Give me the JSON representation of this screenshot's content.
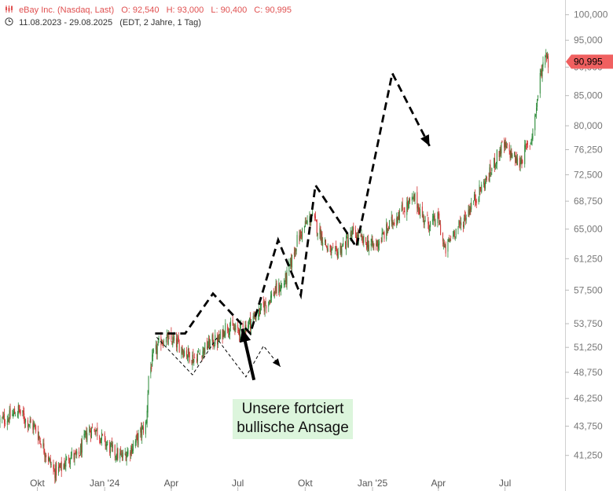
{
  "header": {
    "instrument": "eBay Inc. (Nasdaq, Last)",
    "open": "O: 92,540",
    "high": "H: 93,000",
    "low": "L: 90,400",
    "close": "C: 90,995",
    "date_range": "11.08.2023 - 29.08.2025",
    "interval": "(EDT, 2 Jahre, 1 Tag)"
  },
  "annotation": {
    "line1": "Unsere fortciert",
    "line2": "bullische Ansage"
  },
  "colors": {
    "up": "#2e8b3a",
    "down": "#d03030",
    "header_text": "#e05050",
    "last_price_tag": "#f06060",
    "annotation_bg": "#dcf5dc",
    "axis_text": "#777777",
    "path": "#000000"
  },
  "chart_data": {
    "type": "candlestick",
    "y_axis": {
      "scale": "log",
      "ticks": [
        "100,000",
        "95,000",
        "90,000",
        "85,000",
        "80,000",
        "76,250",
        "72,500",
        "68,750",
        "65,000",
        "61,250",
        "57,500",
        "53,750",
        "51,250",
        "48,750",
        "46,250",
        "43,750",
        "41,250"
      ],
      "tick_values": [
        100,
        95,
        90,
        85,
        80,
        76.25,
        72.5,
        68.75,
        65,
        61.25,
        57.5,
        53.75,
        51.25,
        48.75,
        46.25,
        43.75,
        41.25
      ],
      "range": [
        39.2,
        103
      ]
    },
    "x_axis": {
      "ticks": [
        "Okt",
        "Jan '24",
        "Apr",
        "Jul",
        "Okt",
        "Jan '25",
        "Apr",
        "Jul"
      ],
      "tick_dates": [
        "2023-10-01",
        "2024-01-01",
        "2024-04-01",
        "2024-07-01",
        "2024-10-01",
        "2025-01-01",
        "2025-04-01",
        "2025-07-01"
      ],
      "range": [
        "2023-08-11",
        "2025-09-20"
      ]
    },
    "last_price": {
      "label": "90,995",
      "value": 90.995
    },
    "price_path": [
      [
        "2023-08-11",
        44.2
      ],
      [
        "2023-08-25",
        44.6
      ],
      [
        "2023-09-05",
        45.2
      ],
      [
        "2023-09-15",
        44.3
      ],
      [
        "2023-09-28",
        43.6
      ],
      [
        "2023-10-10",
        41.8
      ],
      [
        "2023-10-24",
        39.9
      ],
      [
        "2023-11-03",
        40.2
      ],
      [
        "2023-11-15",
        41.3
      ],
      [
        "2023-11-25",
        41.0
      ],
      [
        "2023-12-08",
        43.2
      ],
      [
        "2023-12-18",
        43.6
      ],
      [
        "2024-01-03",
        42.2
      ],
      [
        "2024-01-12",
        41.6
      ],
      [
        "2024-01-25",
        41.1
      ],
      [
        "2024-02-06",
        41.8
      ],
      [
        "2024-02-20",
        43.2
      ],
      [
        "2024-02-27",
        44.0
      ],
      [
        "2024-03-01",
        48.4
      ],
      [
        "2024-03-08",
        50.4
      ],
      [
        "2024-03-18",
        52.0
      ],
      [
        "2024-04-01",
        52.0
      ],
      [
        "2024-04-10",
        51.6
      ],
      [
        "2024-04-20",
        50.8
      ],
      [
        "2024-05-02",
        50.1
      ],
      [
        "2024-05-15",
        51.0
      ],
      [
        "2024-05-25",
        51.8
      ],
      [
        "2024-06-05",
        52.0
      ],
      [
        "2024-06-15",
        53.6
      ],
      [
        "2024-06-28",
        53.0
      ],
      [
        "2024-07-10",
        53.3
      ],
      [
        "2024-07-25",
        54.6
      ],
      [
        "2024-08-05",
        55.6
      ],
      [
        "2024-08-20",
        57.3
      ],
      [
        "2024-09-01",
        58.1
      ],
      [
        "2024-09-08",
        59.6
      ],
      [
        "2024-09-20",
        63.5
      ],
      [
        "2024-10-01",
        65.5
      ],
      [
        "2024-10-10",
        66.7
      ],
      [
        "2024-10-20",
        64.7
      ],
      [
        "2024-10-28",
        63.3
      ],
      [
        "2024-11-01",
        62.3
      ],
      [
        "2024-11-10",
        61.7
      ],
      [
        "2024-11-22",
        62.9
      ],
      [
        "2024-12-05",
        64.4
      ],
      [
        "2024-12-18",
        63.4
      ],
      [
        "2025-01-03",
        62.8
      ],
      [
        "2025-01-14",
        63.9
      ],
      [
        "2025-01-25",
        65.6
      ],
      [
        "2025-02-05",
        67.0
      ],
      [
        "2025-02-18",
        68.2
      ],
      [
        "2025-02-28",
        69.1
      ],
      [
        "2025-03-10",
        66.7
      ],
      [
        "2025-03-20",
        65.6
      ],
      [
        "2025-04-01",
        66.4
      ],
      [
        "2025-04-10",
        62.1
      ],
      [
        "2025-04-20",
        64.4
      ],
      [
        "2025-05-02",
        65.6
      ],
      [
        "2025-05-15",
        68.1
      ],
      [
        "2025-05-28",
        70.3
      ],
      [
        "2025-06-10",
        72.6
      ],
      [
        "2025-06-20",
        75.2
      ],
      [
        "2025-06-28",
        76.9
      ],
      [
        "2025-07-10",
        75.6
      ],
      [
        "2025-07-20",
        74.0
      ],
      [
        "2025-07-28",
        76.0
      ],
      [
        "2025-08-05",
        77.5
      ],
      [
        "2025-08-12",
        82.2
      ],
      [
        "2025-08-18",
        88.3
      ],
      [
        "2025-08-22",
        90.4
      ],
      [
        "2025-08-25",
        93.2
      ],
      [
        "2025-08-29",
        90.995
      ]
    ]
  },
  "overlay_paths": {
    "forecast_dashed": [
      [
        "2024-03-10",
        52.7
      ],
      [
        "2024-04-20",
        52.7
      ],
      [
        "2024-05-28",
        57.1
      ],
      [
        "2024-07-18",
        52.7
      ],
      [
        "2024-08-25",
        63.6
      ],
      [
        "2024-09-25",
        56.9
      ],
      [
        "2024-10-15",
        71.0
      ],
      [
        "2024-12-10",
        62.7
      ],
      [
        "2025-01-28",
        88.9
      ],
      [
        "2025-03-20",
        76.8
      ]
    ],
    "forecast_thin": [
      [
        "2024-03-12",
        52.3
      ],
      [
        "2024-04-30",
        48.5
      ],
      [
        "2024-06-02",
        52.2
      ],
      [
        "2024-07-12",
        48.3
      ],
      [
        "2024-08-05",
        51.4
      ],
      [
        "2024-08-28",
        49.3
      ]
    ],
    "arrow": [
      [
        "2024-07-23",
        48.0
      ],
      [
        "2024-07-07",
        53.2
      ]
    ]
  }
}
